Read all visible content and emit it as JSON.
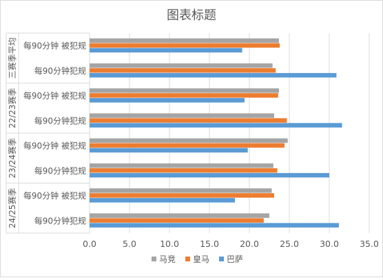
{
  "chart_data": {
    "type": "bar",
    "orientation": "horizontal",
    "title": "图表标题",
    "xlim": [
      0,
      35
    ],
    "xticks": [
      "0.0",
      "5.0",
      "10.0",
      "15.0",
      "20.0",
      "25.0",
      "30.0",
      "35.0"
    ],
    "grid": "vertical",
    "legend_position": "bottom",
    "groups": [
      "24/25赛季",
      "23/24赛季",
      "22/23赛季",
      "三赛季平均"
    ],
    "categories": [
      {
        "group": "24/25赛季",
        "label": "每90分钟犯规"
      },
      {
        "group": "24/25赛季",
        "label": "每90分钟 被犯规"
      },
      {
        "group": "23/24赛季",
        "label": "每90分钟犯规"
      },
      {
        "group": "23/24赛季",
        "label": "每90分钟 被犯规"
      },
      {
        "group": "22/23赛季",
        "label": "每90分钟犯规"
      },
      {
        "group": "22/23赛季",
        "label": "每90分钟 被犯规"
      },
      {
        "group": "三赛季平均",
        "label": "每90分钟犯规"
      },
      {
        "group": "三赛季平均",
        "label": "每90分钟 被犯规"
      }
    ],
    "series": [
      {
        "name": "巴萨",
        "color": "#5B9BD5",
        "values": [
          31.2,
          18.2,
          30.0,
          19.8,
          31.6,
          19.4,
          30.9,
          19.1
        ]
      },
      {
        "name": "皇马",
        "color": "#ED7D31",
        "values": [
          21.8,
          23.1,
          23.5,
          24.4,
          24.7,
          23.6,
          23.3,
          23.8
        ]
      },
      {
        "name": "马竞",
        "color": "#A5A5A5",
        "values": [
          22.5,
          22.8,
          23.0,
          24.8,
          23.1,
          23.7,
          22.9,
          23.7
        ]
      }
    ],
    "legend_order": [
      "马竞",
      "皇马",
      "巴萨"
    ]
  }
}
